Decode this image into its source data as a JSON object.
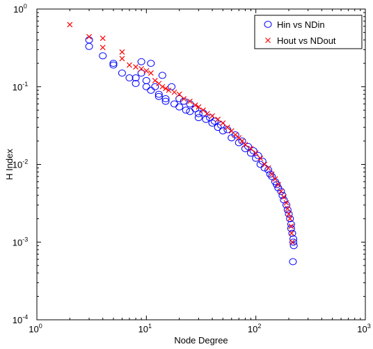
{
  "chart_data": {
    "type": "scatter",
    "xlabel": "Node Degree",
    "ylabel": "H Index",
    "xscale": "log",
    "yscale": "log",
    "xlim": [
      1,
      1000
    ],
    "ylim": [
      0.0001,
      1
    ],
    "x_ticks": [
      {
        "base": "10",
        "exp": "0",
        "value": 1
      },
      {
        "base": "10",
        "exp": "1",
        "value": 10
      },
      {
        "base": "10",
        "exp": "2",
        "value": 100
      },
      {
        "base": "10",
        "exp": "3",
        "value": 1000
      }
    ],
    "y_ticks": [
      {
        "base": "10",
        "exp": "-4",
        "value": 0.0001
      },
      {
        "base": "10",
        "exp": "-3",
        "value": 0.001
      },
      {
        "base": "10",
        "exp": "-2",
        "value": 0.01
      },
      {
        "base": "10",
        "exp": "-1",
        "value": 0.1
      },
      {
        "base": "10",
        "exp": "0",
        "value": 1
      }
    ],
    "grid": false,
    "legend_position": "top-right",
    "series": [
      {
        "name": "Hin vs NDin",
        "marker": "circle",
        "color": "#0000ff",
        "points": [
          [
            3,
            0.4
          ],
          [
            3,
            0.33
          ],
          [
            4,
            0.25
          ],
          [
            5,
            0.2
          ],
          [
            5,
            0.19
          ],
          [
            6,
            0.15
          ],
          [
            7,
            0.13
          ],
          [
            8,
            0.13
          ],
          [
            8,
            0.11
          ],
          [
            9,
            0.21
          ],
          [
            9,
            0.15
          ],
          [
            10,
            0.12
          ],
          [
            10,
            0.1
          ],
          [
            11,
            0.2
          ],
          [
            11,
            0.09
          ],
          [
            12,
            0.1
          ],
          [
            13,
            0.08
          ],
          [
            13,
            0.075
          ],
          [
            14,
            0.14
          ],
          [
            15,
            0.065
          ],
          [
            15,
            0.07
          ],
          [
            17,
            0.1
          ],
          [
            18,
            0.06
          ],
          [
            20,
            0.07
          ],
          [
            20,
            0.055
          ],
          [
            22,
            0.065
          ],
          [
            23,
            0.05
          ],
          [
            25,
            0.06
          ],
          [
            25,
            0.048
          ],
          [
            28,
            0.052
          ],
          [
            30,
            0.045
          ],
          [
            30,
            0.04
          ],
          [
            33,
            0.046
          ],
          [
            35,
            0.038
          ],
          [
            38,
            0.04
          ],
          [
            40,
            0.034
          ],
          [
            42,
            0.036
          ],
          [
            45,
            0.03
          ],
          [
            48,
            0.032
          ],
          [
            50,
            0.027
          ],
          [
            55,
            0.028
          ],
          [
            60,
            0.022
          ],
          [
            65,
            0.024
          ],
          [
            70,
            0.019
          ],
          [
            75,
            0.02
          ],
          [
            80,
            0.016
          ],
          [
            85,
            0.017
          ],
          [
            90,
            0.014
          ],
          [
            95,
            0.015
          ],
          [
            100,
            0.012
          ],
          [
            105,
            0.013
          ],
          [
            110,
            0.01
          ],
          [
            115,
            0.011
          ],
          [
            120,
            0.009
          ],
          [
            130,
            0.0085
          ],
          [
            135,
            0.0075
          ],
          [
            140,
            0.007
          ],
          [
            150,
            0.006
          ],
          [
            155,
            0.0055
          ],
          [
            160,
            0.005
          ],
          [
            170,
            0.0045
          ],
          [
            175,
            0.004
          ],
          [
            180,
            0.0035
          ],
          [
            190,
            0.003
          ],
          [
            195,
            0.0026
          ],
          [
            200,
            0.0023
          ],
          [
            205,
            0.002
          ],
          [
            210,
            0.0017
          ],
          [
            210,
            0.0015
          ],
          [
            215,
            0.0013
          ],
          [
            220,
            0.0011
          ],
          [
            220,
            0.001
          ],
          [
            222,
            0.0009
          ],
          [
            218,
            0.00056
          ]
        ]
      },
      {
        "name": "Hout vs NDout",
        "marker": "x",
        "color": "#ff0000",
        "points": [
          [
            2,
            0.63
          ],
          [
            3,
            0.44
          ],
          [
            4,
            0.42
          ],
          [
            4,
            0.32
          ],
          [
            6,
            0.28
          ],
          [
            6,
            0.23
          ],
          [
            7,
            0.19
          ],
          [
            8,
            0.18
          ],
          [
            9,
            0.17
          ],
          [
            10,
            0.16
          ],
          [
            11,
            0.15
          ],
          [
            12,
            0.12
          ],
          [
            13,
            0.11
          ],
          [
            14,
            0.1
          ],
          [
            15,
            0.095
          ],
          [
            16,
            0.09
          ],
          [
            18,
            0.085
          ],
          [
            20,
            0.08
          ],
          [
            22,
            0.07
          ],
          [
            25,
            0.065
          ],
          [
            28,
            0.058
          ],
          [
            30,
            0.055
          ],
          [
            33,
            0.05
          ],
          [
            36,
            0.045
          ],
          [
            40,
            0.042
          ],
          [
            45,
            0.038
          ],
          [
            50,
            0.034
          ],
          [
            55,
            0.03
          ],
          [
            60,
            0.027
          ],
          [
            65,
            0.024
          ],
          [
            70,
            0.022
          ],
          [
            75,
            0.02
          ],
          [
            80,
            0.018
          ],
          [
            90,
            0.016
          ],
          [
            100,
            0.014
          ],
          [
            110,
            0.012
          ],
          [
            120,
            0.01
          ],
          [
            130,
            0.009
          ],
          [
            140,
            0.0075
          ],
          [
            150,
            0.0065
          ],
          [
            160,
            0.0055
          ],
          [
            170,
            0.0045
          ],
          [
            180,
            0.0038
          ],
          [
            190,
            0.0032
          ],
          [
            195,
            0.0027
          ],
          [
            200,
            0.0023
          ],
          [
            205,
            0.002
          ],
          [
            210,
            0.0016
          ],
          [
            212,
            0.0013
          ],
          [
            215,
            0.001
          ]
        ]
      }
    ]
  }
}
